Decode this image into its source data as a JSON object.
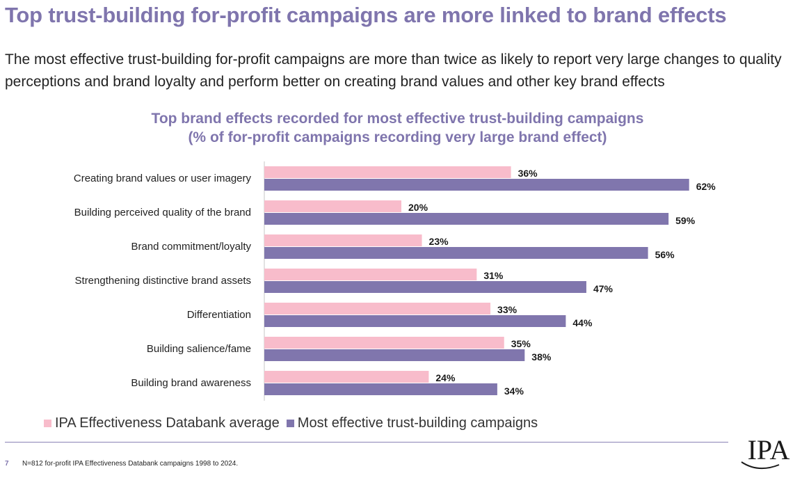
{
  "slide": {
    "title": "Top trust-building for-profit campaigns are more linked to brand effects",
    "subtitle": "The most effective trust-building for-profit campaigns are more than twice as likely to report very large changes to quality perceptions and brand loyalty and perform better on creating brand values and other key brand effects",
    "page_number": "7",
    "footnote": "N=812 for-profit IPA Effectiveness Databank campaigns 1998 to 2024.",
    "logo_text": "IPA"
  },
  "colors": {
    "accent": "#7f75ad",
    "series_average": "#f8bccb",
    "series_trust": "#8076ad"
  },
  "chart_data": {
    "type": "bar",
    "orientation": "horizontal",
    "title": "Top brand effects recorded for most effective trust-building campaigns",
    "title_line2": "(% of for-profit campaigns recording very large brand effect)",
    "xlabel": "",
    "ylabel": "",
    "xlim": [
      0,
      65
    ],
    "grid": false,
    "legend_position": "bottom-left",
    "categories": [
      "Creating brand values or user imagery",
      "Building perceived quality of the brand",
      "Brand commitment/loyalty",
      "Strengthening  distinctive brand assets",
      "Differentiation",
      "Building salience/fame",
      "Building brand awareness"
    ],
    "series": [
      {
        "name": "IPA Effectiveness Databank average",
        "color": "#f8bccb",
        "values": [
          36,
          20,
          23,
          31,
          33,
          35,
          24
        ],
        "labels": [
          "36%",
          "20%",
          "23%",
          "31%",
          "33%",
          "35%",
          "24%"
        ]
      },
      {
        "name": "Most effective trust-building campaigns",
        "color": "#8076ad",
        "values": [
          62,
          59,
          56,
          47,
          44,
          38,
          34
        ],
        "labels": [
          "62%",
          "59%",
          "56%",
          "47%",
          "44%",
          "38%",
          "34%"
        ]
      }
    ]
  }
}
